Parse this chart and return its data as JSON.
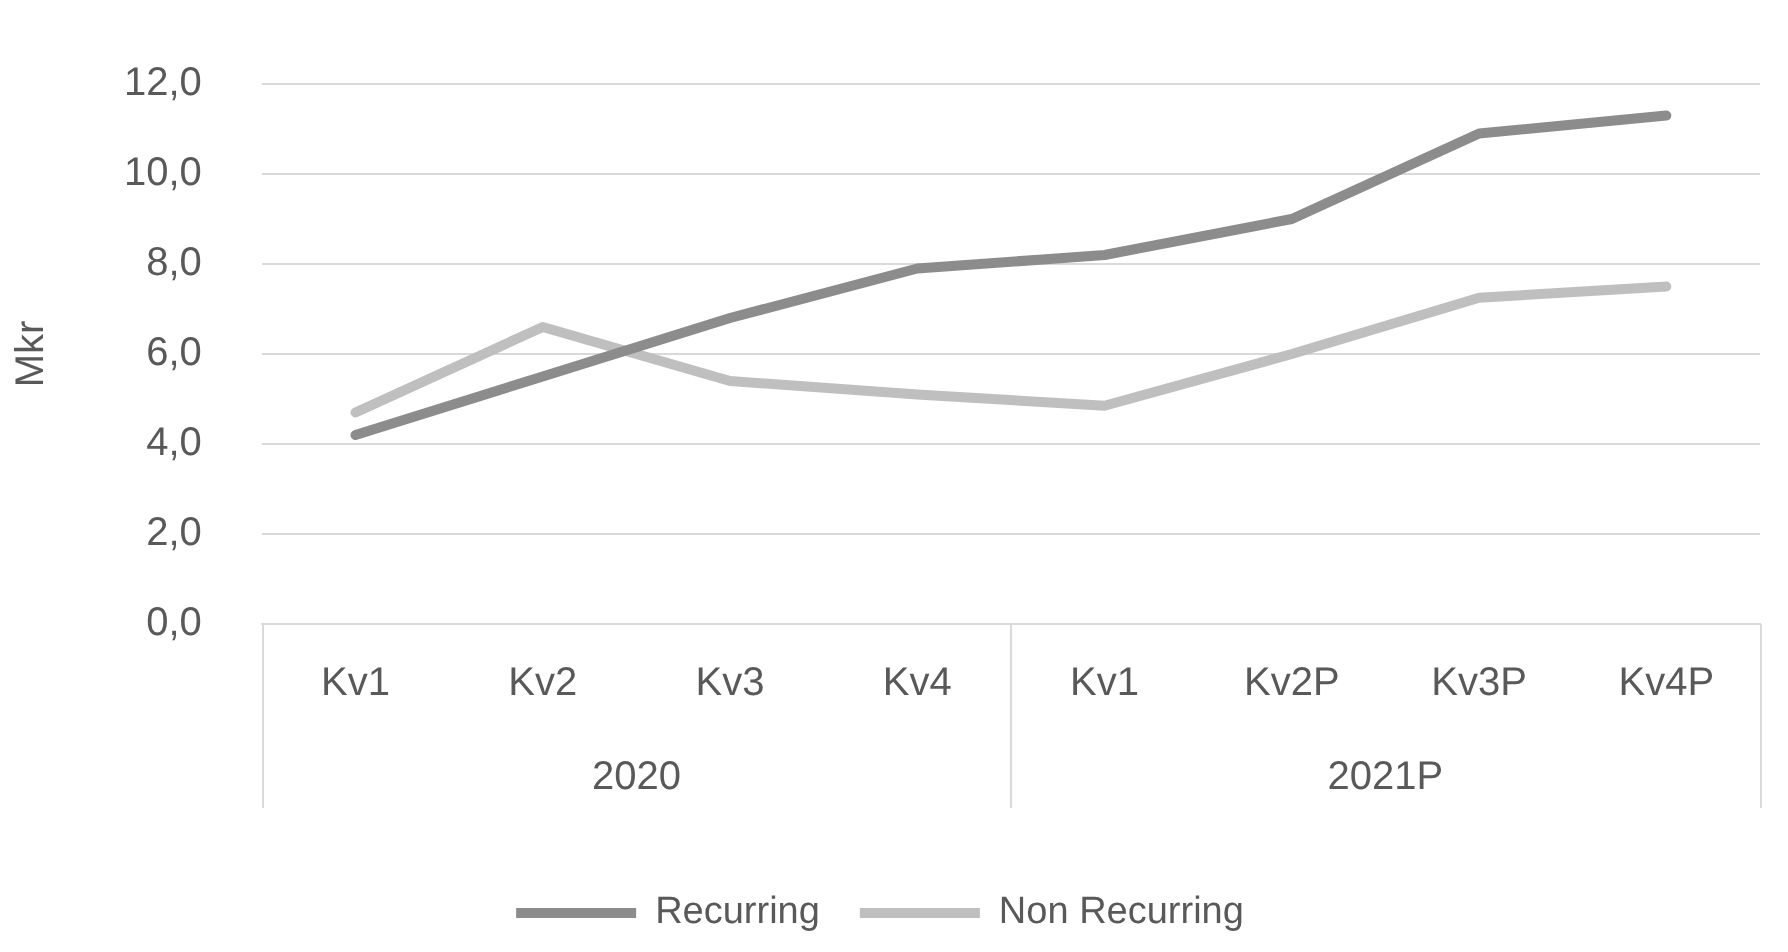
{
  "chart_data": {
    "type": "line",
    "ylabel": "Mkr",
    "categories": [
      "Kv1",
      "Kv2",
      "Kv3",
      "Kv4",
      "Kv1",
      "Kv2P",
      "Kv3P",
      "Kv4P"
    ],
    "series": [
      {
        "name": "Recurring",
        "color": "#8c8c8c",
        "values": [
          4.2,
          5.5,
          6.8,
          7.9,
          8.2,
          9.0,
          10.9,
          11.3
        ]
      },
      {
        "name": "Non Recurring",
        "color": "#bfbfbf",
        "values": [
          4.7,
          6.6,
          5.4,
          5.1,
          4.85,
          6.0,
          7.25,
          7.5
        ]
      }
    ],
    "ylim": [
      0,
      12
    ],
    "yticks": [
      {
        "value": 0,
        "label": "0,0"
      },
      {
        "value": 2,
        "label": "2,0"
      },
      {
        "value": 4,
        "label": "4,0"
      },
      {
        "value": 6,
        "label": "6,0"
      },
      {
        "value": 8,
        "label": "8,0"
      },
      {
        "value": 10,
        "label": "10,0"
      },
      {
        "value": 12,
        "label": "12,0"
      }
    ],
    "annotations": [
      "2020",
      "2021P"
    ],
    "grid": "y",
    "legend": "bottom",
    "marker": "none",
    "line_style": "solid"
  }
}
